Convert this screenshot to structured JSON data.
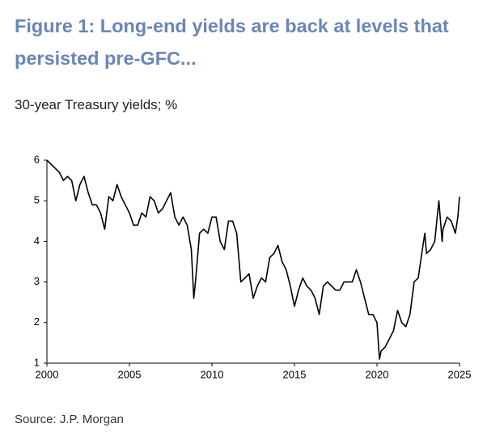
{
  "chart_data": {
    "type": "line",
    "title": "Figure 1: Long-end yields are back at levels that persisted pre-GFC...",
    "subtitle": "30-year Treasury yields; %",
    "source": "Source: J.P. Morgan",
    "color": "#000000",
    "x": [
      2000,
      2000.25,
      2000.5,
      2000.75,
      2001,
      2001.25,
      2001.5,
      2001.75,
      2002,
      2002.25,
      2002.5,
      2002.75,
      2003,
      2003.25,
      2003.5,
      2003.75,
      2004,
      2004.25,
      2004.5,
      2004.75,
      2005,
      2005.25,
      2005.5,
      2005.75,
      2006,
      2006.25,
      2006.5,
      2006.75,
      2007,
      2007.25,
      2007.5,
      2007.75,
      2008,
      2008.25,
      2008.5,
      2008.75,
      2008.9,
      2009,
      2009.25,
      2009.5,
      2009.75,
      2010,
      2010.25,
      2010.5,
      2010.75,
      2011,
      2011.25,
      2011.5,
      2011.75,
      2012,
      2012.25,
      2012.5,
      2012.75,
      2013,
      2013.25,
      2013.5,
      2013.75,
      2014,
      2014.25,
      2014.5,
      2014.75,
      2015,
      2015.25,
      2015.5,
      2015.75,
      2016,
      2016.25,
      2016.5,
      2016.75,
      2017,
      2017.25,
      2017.5,
      2017.75,
      2018,
      2018.25,
      2018.5,
      2018.75,
      2019,
      2019.25,
      2019.5,
      2019.75,
      2020,
      2020.15,
      2020.25,
      2020.5,
      2020.75,
      2021,
      2021.25,
      2021.5,
      2021.75,
      2022,
      2022.25,
      2022.5,
      2022.75,
      2022.9,
      2023,
      2023.25,
      2023.5,
      2023.75,
      2023.95,
      2024,
      2024.25,
      2024.5,
      2024.75,
      2024.9,
      2025
    ],
    "values": [
      6.0,
      5.9,
      5.8,
      5.7,
      5.5,
      5.6,
      5.5,
      5.0,
      5.4,
      5.6,
      5.2,
      4.9,
      4.9,
      4.7,
      4.3,
      5.1,
      5.0,
      5.4,
      5.1,
      4.9,
      4.7,
      4.4,
      4.4,
      4.7,
      4.6,
      5.1,
      5.0,
      4.7,
      4.8,
      5.0,
      5.2,
      4.6,
      4.4,
      4.6,
      4.4,
      3.8,
      2.6,
      3.0,
      4.2,
      4.3,
      4.2,
      4.6,
      4.6,
      4.0,
      3.8,
      4.5,
      4.5,
      4.2,
      3.0,
      3.1,
      3.2,
      2.6,
      2.9,
      3.1,
      3.0,
      3.6,
      3.7,
      3.9,
      3.5,
      3.3,
      2.9,
      2.4,
      2.8,
      3.1,
      2.9,
      2.8,
      2.6,
      2.2,
      2.9,
      3.0,
      2.9,
      2.8,
      2.8,
      3.0,
      3.0,
      3.0,
      3.3,
      3.0,
      2.6,
      2.2,
      2.2,
      2.0,
      1.1,
      1.3,
      1.4,
      1.6,
      1.8,
      2.3,
      2.0,
      1.9,
      2.2,
      3.0,
      3.1,
      3.8,
      4.2,
      3.7,
      3.8,
      4.0,
      5.0,
      4.0,
      4.3,
      4.6,
      4.5,
      4.2,
      4.6,
      5.1
    ],
    "xlim": [
      2000,
      2025
    ],
    "xticks": [
      2000,
      2005,
      2010,
      2015,
      2020,
      2025
    ],
    "ylim": [
      1,
      6
    ],
    "yticks": [
      1,
      2,
      3,
      4,
      5,
      6
    ]
  }
}
